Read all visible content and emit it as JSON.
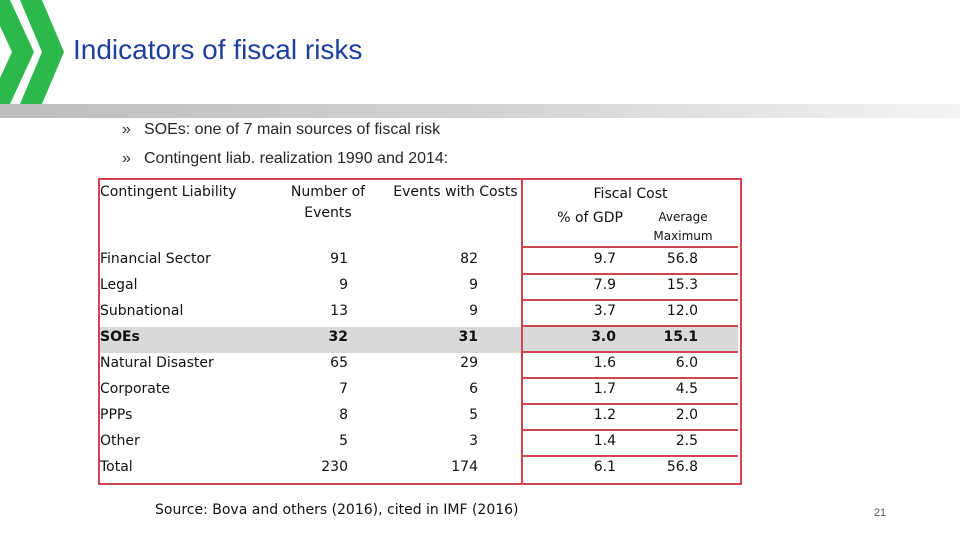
{
  "slide": {
    "title": "Indicators of fiscal risks",
    "bullet_marker": "»",
    "bullets": [
      "SOEs: one of 7 main sources of fiscal risk",
      "Contingent liab. realization 1990 and 2014:"
    ],
    "source": "Source: Bova and others (2016), cited in IMF (2016)",
    "page_number": "21",
    "colors": {
      "title": "#1f3f9e",
      "logo_green": "#2db84b",
      "table_border": "#d0454f",
      "highlight_row": "#d9d9d9"
    }
  },
  "table": {
    "headers": {
      "contingent_liability": "Contingent Liability",
      "number_of_events_line1": "Number of",
      "number_of_events_line2": "Events",
      "events_with_costs": "Events with Costs",
      "fiscal_cost": "Fiscal Cost",
      "pct_gdp": "% of GDP",
      "average_maximum_line1": "Average",
      "average_maximum_line2": "Maximum"
    },
    "rows": [
      {
        "name": "Financial Sector",
        "events": "91",
        "with_costs": "82",
        "pct_gdp": "9.7",
        "avg_max": "56.8"
      },
      {
        "name": "Legal",
        "events": "9",
        "with_costs": "9",
        "pct_gdp": "7.9",
        "avg_max": "15.3"
      },
      {
        "name": "Subnational",
        "events": "13",
        "with_costs": "9",
        "pct_gdp": "3.7",
        "avg_max": "12.0"
      },
      {
        "name": "SOEs",
        "events": "32",
        "with_costs": "31",
        "pct_gdp": "3.0",
        "avg_max": "15.1"
      },
      {
        "name": "Natural Disaster",
        "events": "65",
        "with_costs": "29",
        "pct_gdp": "1.6",
        "avg_max": "6.0"
      },
      {
        "name": "Corporate",
        "events": "7",
        "with_costs": "6",
        "pct_gdp": "1.7",
        "avg_max": "4.5"
      },
      {
        "name": "PPPs",
        "events": "8",
        "with_costs": "5",
        "pct_gdp": "1.2",
        "avg_max": "2.0"
      },
      {
        "name": "Other",
        "events": "5",
        "with_costs": "3",
        "pct_gdp": "1.4",
        "avg_max": "2.5"
      },
      {
        "name": "Total",
        "events": "230",
        "with_costs": "174",
        "pct_gdp": "6.1",
        "avg_max": "56.8"
      }
    ]
  }
}
